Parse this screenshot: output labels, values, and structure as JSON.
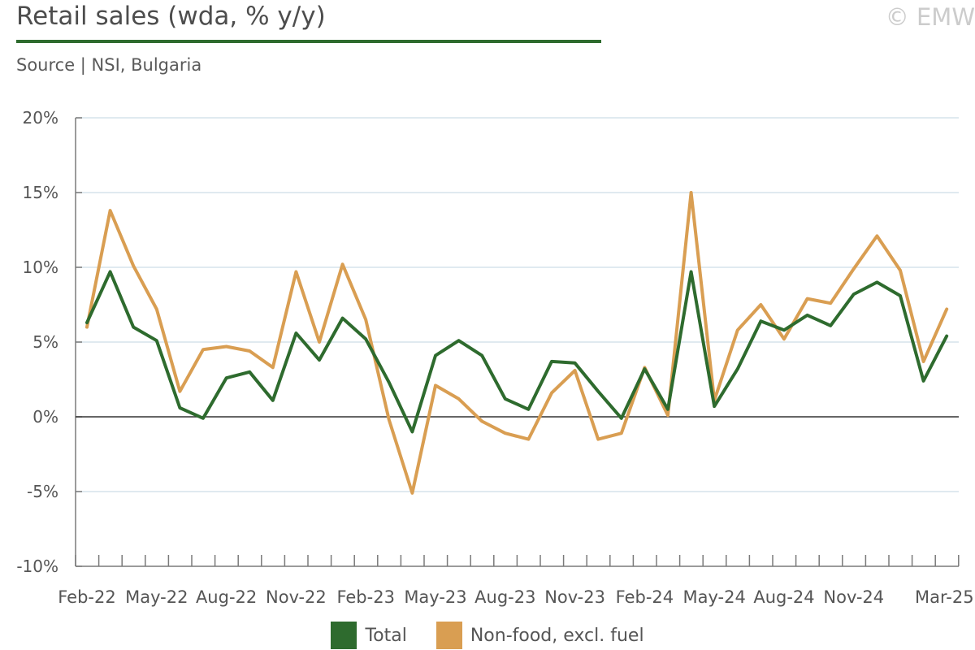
{
  "header": {
    "title": "Retail sales (wda, % y/y)",
    "subtitle": "Source | NSI, Bulgaria",
    "copyright": "© EMW"
  },
  "colors": {
    "total": "#2e6b2e",
    "nonfood": "#d99e52",
    "grid": "#d6e4ec",
    "axis": "#7a7a7a",
    "zero": "#333333"
  },
  "chart_data": {
    "type": "line",
    "title": "Retail sales (wda, % y/y)",
    "xlabel": "",
    "ylabel": "",
    "ylim": [
      -10,
      20
    ],
    "yticks": [
      -10,
      -5,
      0,
      5,
      10,
      15,
      20
    ],
    "ytick_labels": [
      "-10%",
      "-5%",
      "0%",
      "5%",
      "10%",
      "15%",
      "20%"
    ],
    "x_tick_labels": [
      {
        "index": 0,
        "label": "Feb-22"
      },
      {
        "index": 3,
        "label": "May-22"
      },
      {
        "index": 6,
        "label": "Aug-22"
      },
      {
        "index": 9,
        "label": "Nov-22"
      },
      {
        "index": 12,
        "label": "Feb-23"
      },
      {
        "index": 15,
        "label": "May-23"
      },
      {
        "index": 18,
        "label": "Aug-23"
      },
      {
        "index": 21,
        "label": "Nov-23"
      },
      {
        "index": 24,
        "label": "Feb-24"
      },
      {
        "index": 27,
        "label": "May-24"
      },
      {
        "index": 30,
        "label": "Aug-24"
      },
      {
        "index": 33,
        "label": "Nov-24"
      },
      {
        "index": 37,
        "label": "Mar-25"
      }
    ],
    "grid": true,
    "legend_position": "bottom",
    "series": [
      {
        "name": "Total",
        "color": "#2e6b2e",
        "values": [
          6.3,
          9.7,
          6.0,
          5.1,
          0.6,
          -0.1,
          2.6,
          3.0,
          1.1,
          5.6,
          3.8,
          6.6,
          5.2,
          2.3,
          -1.0,
          4.1,
          5.1,
          4.1,
          1.2,
          0.5,
          3.7,
          3.6,
          1.7,
          -0.1,
          3.2,
          0.5,
          9.7,
          0.7,
          3.2,
          6.4,
          5.8,
          6.8,
          6.1,
          8.2,
          9.0,
          8.1,
          2.4,
          5.4
        ]
      },
      {
        "name": "Non-food, excl. fuel",
        "color": "#d99e52",
        "values": [
          6.0,
          13.8,
          10.1,
          7.2,
          1.7,
          4.5,
          4.7,
          4.4,
          3.3,
          9.7,
          5.0,
          10.2,
          6.5,
          -0.2,
          -5.1,
          2.1,
          1.2,
          -0.3,
          -1.1,
          -1.5,
          1.6,
          3.1,
          -1.5,
          -1.1,
          3.3,
          0.1,
          15.0,
          1.1,
          5.8,
          7.5,
          5.2,
          7.9,
          7.6,
          9.9,
          12.1,
          9.8,
          3.7,
          7.2
        ]
      }
    ]
  }
}
